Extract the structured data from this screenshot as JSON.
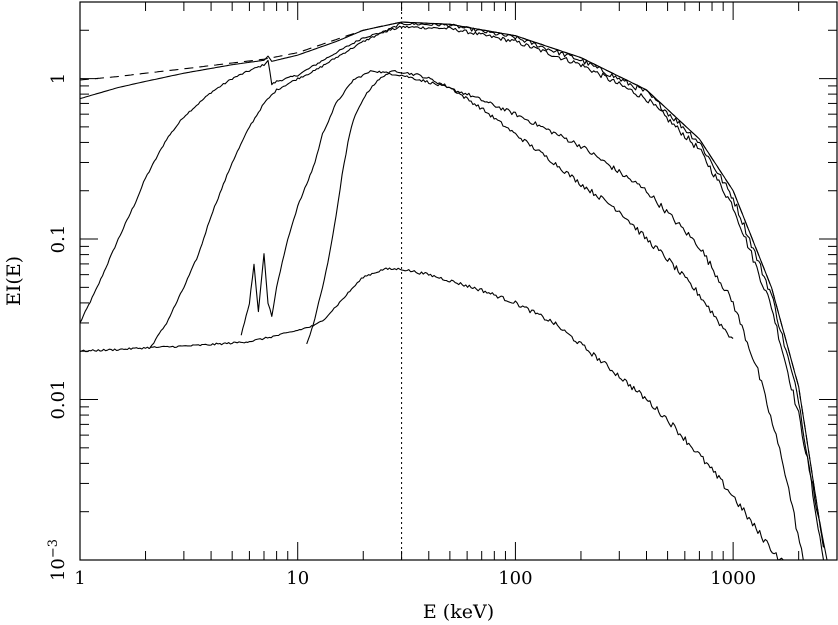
{
  "chart_data": {
    "type": "line",
    "xlabel": "E (keV)",
    "ylabel": "EI(E)",
    "x_scale": "log",
    "y_scale": "log",
    "xlim": [
      1,
      3000
    ],
    "ylim": [
      0.001,
      3
    ],
    "x_ticks": [
      {
        "value": 1,
        "label": "1"
      },
      {
        "value": 10,
        "label": "10"
      },
      {
        "value": 100,
        "label": "100"
      },
      {
        "value": 1000,
        "label": "1000"
      }
    ],
    "y_ticks": [
      {
        "value": 0.001,
        "label": "10",
        "sup": "−3"
      },
      {
        "value": 0.01,
        "label": "0.01",
        "sup": ""
      },
      {
        "value": 0.1,
        "label": "0.1",
        "sup": ""
      },
      {
        "value": 1,
        "label": "1",
        "sup": ""
      }
    ],
    "reference_line_x": 30,
    "series": [
      {
        "style": "dashed",
        "x": [
          1,
          1.5,
          2,
          3,
          5,
          7,
          10,
          15,
          20,
          30,
          50,
          100,
          200,
          400,
          700,
          1000,
          1500,
          2000,
          2600
        ],
        "y": [
          0.98,
          1.03,
          1.08,
          1.15,
          1.25,
          1.32,
          1.45,
          1.75,
          2.0,
          2.25,
          2.18,
          1.85,
          1.35,
          0.85,
          0.42,
          0.2,
          0.05,
          0.012,
          0.0012
        ]
      },
      {
        "style": "solid",
        "x": [
          1,
          1.5,
          2,
          3,
          5,
          7,
          7.3,
          7.6,
          10,
          15,
          20,
          30,
          50,
          100,
          200,
          400,
          700,
          1000,
          1500,
          2000,
          2600
        ],
        "y": [
          0.75,
          0.88,
          0.96,
          1.08,
          1.22,
          1.3,
          1.38,
          1.28,
          1.4,
          1.7,
          2.0,
          2.25,
          2.18,
          1.85,
          1.35,
          0.85,
          0.42,
          0.2,
          0.05,
          0.012,
          0.0012
        ]
      },
      {
        "style": "solid",
        "x": [
          1,
          1.2,
          1.5,
          1.8,
          2,
          2.5,
          3,
          4,
          5,
          6,
          7,
          7.3,
          7.6,
          8,
          10,
          15,
          20,
          30,
          50,
          100,
          200,
          400,
          700,
          1000,
          1500,
          2000,
          2700
        ],
        "y": [
          0.03,
          0.05,
          0.1,
          0.17,
          0.24,
          0.42,
          0.58,
          0.82,
          1.0,
          1.12,
          1.22,
          1.3,
          0.92,
          0.96,
          1.05,
          1.45,
          1.8,
          2.1,
          2.05,
          1.7,
          1.22,
          0.75,
          0.36,
          0.16,
          0.038,
          0.008,
          0.001
        ]
      },
      {
        "style": "solid",
        "x": [
          2.1,
          2.5,
          3,
          3.5,
          4,
          5,
          6,
          7,
          8,
          10,
          12,
          15,
          20,
          30,
          50,
          100,
          200,
          400,
          700,
          1000,
          1500,
          2000,
          2600
        ],
        "y": [
          0.021,
          0.03,
          0.05,
          0.08,
          0.14,
          0.3,
          0.5,
          0.7,
          0.85,
          1.0,
          1.12,
          1.35,
          1.7,
          2.2,
          2.15,
          1.8,
          1.3,
          0.82,
          0.4,
          0.18,
          0.045,
          0.01,
          0.001
        ]
      },
      {
        "style": "solid",
        "x": [
          5.5,
          6,
          6.3,
          6.6,
          7,
          7.3,
          7.6,
          8,
          9,
          10,
          11,
          12,
          13,
          15,
          18,
          22,
          26,
          30,
          40,
          60,
          100,
          200,
          400,
          700,
          1000,
          1300,
          1700,
          2100
        ],
        "y": [
          0.025,
          0.04,
          0.07,
          0.035,
          0.082,
          0.04,
          0.033,
          0.05,
          0.1,
          0.16,
          0.22,
          0.3,
          0.45,
          0.7,
          0.98,
          1.12,
          1.08,
          1.05,
          0.95,
          0.8,
          0.6,
          0.38,
          0.2,
          0.09,
          0.04,
          0.015,
          0.004,
          0.001
        ]
      },
      {
        "style": "solid",
        "x": [
          11,
          12,
          13,
          14,
          15,
          16,
          17,
          18,
          20,
          22,
          25,
          28,
          30,
          32,
          36,
          40,
          50,
          70,
          100,
          150,
          200,
          300,
          400,
          500,
          700,
          900,
          1000
        ],
        "y": [
          0.022,
          0.032,
          0.05,
          0.08,
          0.14,
          0.25,
          0.4,
          0.55,
          0.75,
          0.9,
          1.05,
          1.12,
          1.1,
          1.08,
          1.05,
          1.0,
          0.88,
          0.65,
          0.45,
          0.3,
          0.22,
          0.15,
          0.1,
          0.075,
          0.045,
          0.028,
          0.024
        ]
      },
      {
        "style": "solid",
        "x": [
          1,
          1.5,
          2,
          3,
          4,
          5,
          6,
          7,
          8,
          9,
          10,
          11,
          12,
          13,
          15,
          18,
          20,
          25,
          30,
          40,
          50,
          70,
          100,
          150,
          200,
          300,
          400,
          500,
          700,
          1000,
          1300,
          1700
        ],
        "y": [
          0.02,
          0.0205,
          0.021,
          0.0215,
          0.022,
          0.0225,
          0.023,
          0.024,
          0.025,
          0.026,
          0.027,
          0.028,
          0.029,
          0.031,
          0.038,
          0.05,
          0.058,
          0.065,
          0.065,
          0.06,
          0.055,
          0.048,
          0.04,
          0.03,
          0.022,
          0.014,
          0.01,
          0.0075,
          0.0045,
          0.0025,
          0.0015,
          0.00095
        ]
      }
    ]
  }
}
